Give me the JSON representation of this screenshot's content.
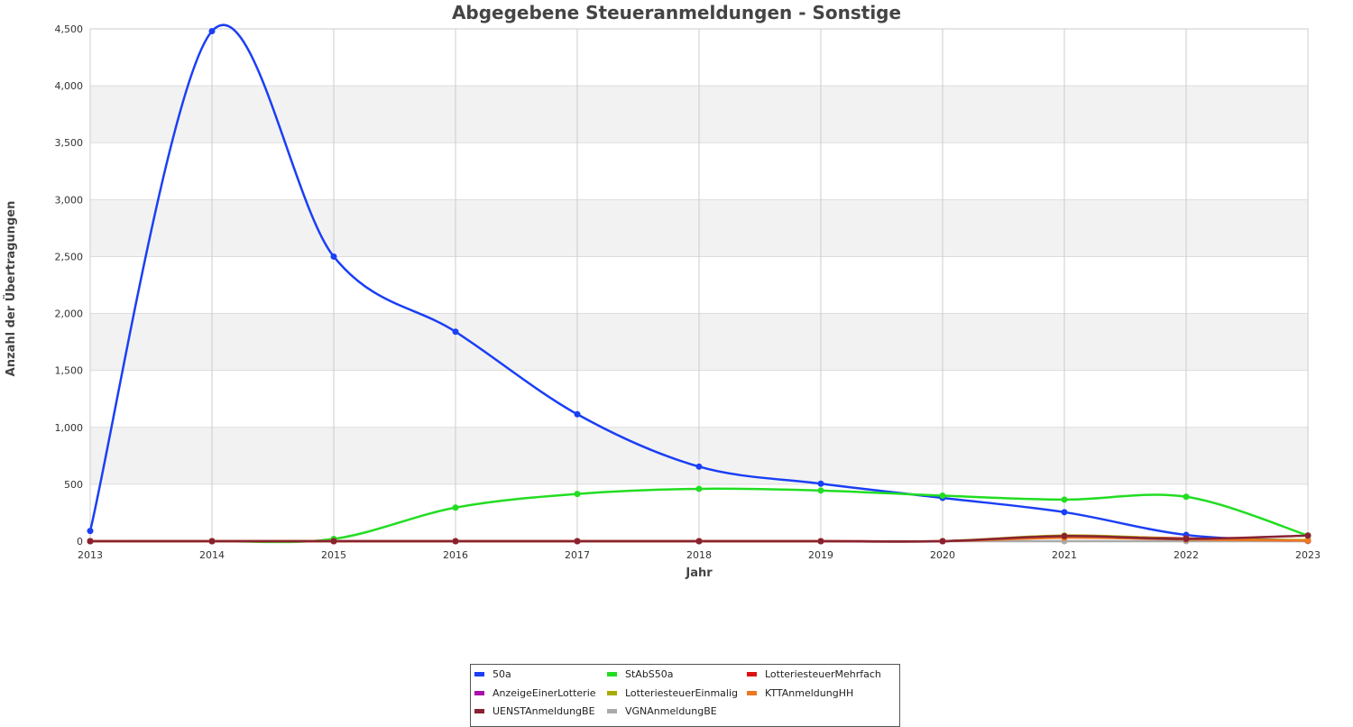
{
  "chart_data": {
    "type": "line",
    "title": "Abgegebene Steueranmeldungen - Sonstige",
    "xlabel": "Jahr",
    "ylabel": "Anzahl der Übertragungen",
    "x": [
      "2013",
      "2014",
      "2015",
      "2016",
      "2017",
      "2018",
      "2019",
      "2020",
      "2021",
      "2022",
      "2023"
    ],
    "xlim": [
      2013,
      2023
    ],
    "ylim": [
      0,
      4500
    ],
    "yticks": [
      0,
      500,
      1000,
      1500,
      2000,
      2500,
      3000,
      3500,
      4000,
      4500
    ],
    "ytick_labels": [
      "0",
      "500",
      "1,000",
      "1,500",
      "2,000",
      "2,500",
      "3,000",
      "3,500",
      "4,000",
      "4,500"
    ],
    "grid": true,
    "legend_position": "bottom",
    "series": [
      {
        "name": "50a",
        "color": "#1a3ff5",
        "values": [
          90,
          4480,
          2500,
          1840,
          1115,
          655,
          505,
          380,
          255,
          55,
          5
        ]
      },
      {
        "name": "StAbS50a",
        "color": "#22dd22",
        "values": [
          0,
          0,
          20,
          295,
          415,
          460,
          445,
          400,
          365,
          390,
          50
        ]
      },
      {
        "name": "LotteriesteuerMehrfach",
        "color": "#dd1111",
        "values": [
          0,
          0,
          0,
          0,
          0,
          0,
          0,
          0,
          40,
          25,
          5
        ]
      },
      {
        "name": "AnzeigeEinerLotterie",
        "color": "#aa11aa",
        "values": [
          0,
          0,
          0,
          0,
          0,
          0,
          0,
          0,
          40,
          20,
          5
        ]
      },
      {
        "name": "LotteriesteuerEinmalig",
        "color": "#aaaa00",
        "values": [
          0,
          0,
          0,
          0,
          0,
          0,
          0,
          0,
          50,
          20,
          10
        ]
      },
      {
        "name": "KTTAnmeldungHH",
        "color": "#ee7722",
        "values": [
          0,
          0,
          0,
          0,
          0,
          0,
          0,
          0,
          30,
          15,
          5
        ]
      },
      {
        "name": "UENSTAnmeldungBE",
        "color": "#882233",
        "values": [
          0,
          0,
          0,
          0,
          0,
          0,
          0,
          0,
          45,
          20,
          50
        ]
      },
      {
        "name": "VGNAnmeldungBE",
        "color": "#aaaaaa",
        "values": [
          0,
          0,
          0,
          0,
          0,
          0,
          0,
          0,
          0,
          0,
          0
        ]
      }
    ]
  }
}
